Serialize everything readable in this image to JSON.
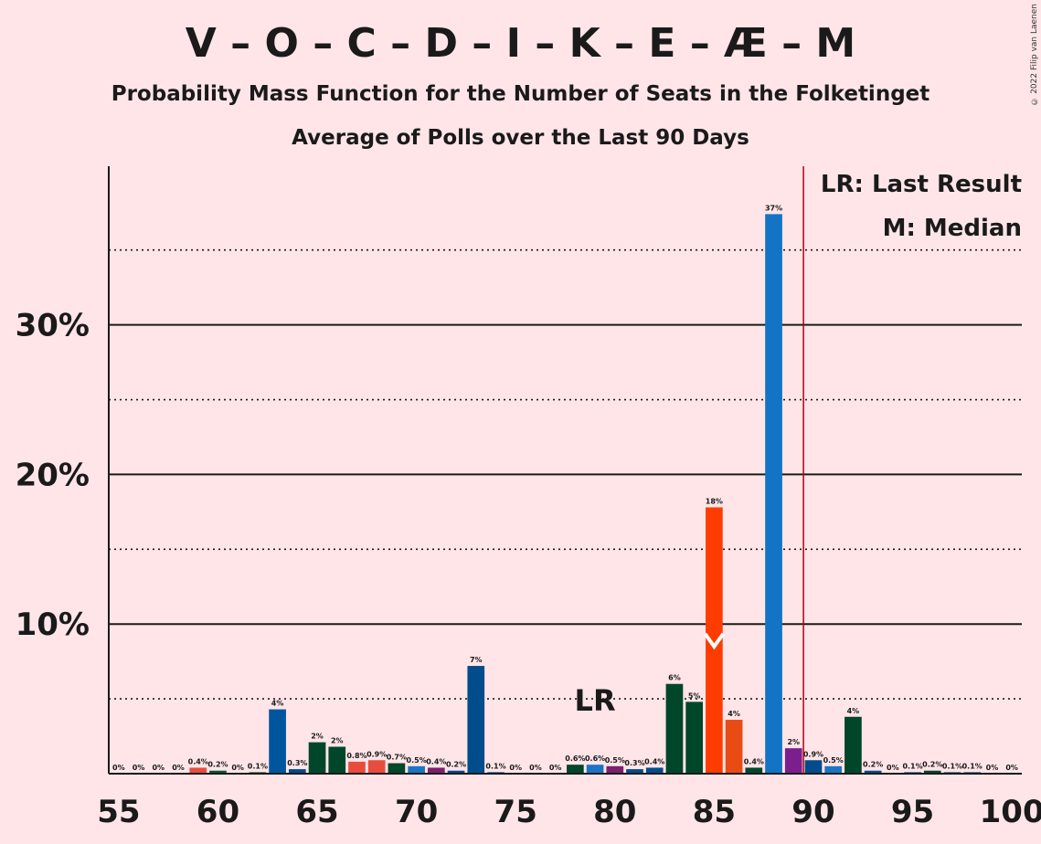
{
  "title": "V – O – C – D – I – K – E – Æ – M",
  "subtitle1": "Probability Mass Function for the Number of Seats in the Folketinget",
  "subtitle2": "Average of Polls over the Last 90 Days",
  "copyright": "© 2022 Filip van Laenen",
  "legend": {
    "lr": "LR: Last Result",
    "m": "M: Median"
  },
  "lr_marker": "LR",
  "chart_data": {
    "type": "bar",
    "x": [
      55,
      56,
      57,
      58,
      59,
      60,
      61,
      62,
      63,
      64,
      65,
      66,
      67,
      68,
      69,
      70,
      71,
      72,
      73,
      74,
      75,
      76,
      77,
      78,
      79,
      80,
      81,
      82,
      83,
      84,
      85,
      86,
      87,
      88,
      89,
      90,
      91,
      92,
      93,
      94,
      95,
      96,
      97,
      98,
      99,
      100
    ],
    "values": [
      0,
      0,
      0,
      0,
      0.4,
      0.2,
      0,
      0.1,
      4.3,
      0.3,
      2.1,
      1.8,
      0.8,
      0.9,
      0.7,
      0.5,
      0.4,
      0.2,
      7.2,
      0.1,
      0,
      0,
      0,
      0.6,
      0.6,
      0.5,
      0.3,
      0.4,
      6.0,
      4.8,
      17.8,
      3.6,
      0.4,
      37.4,
      1.7,
      0.9,
      0.5,
      3.8,
      0.2,
      0,
      0.1,
      0.2,
      0.1,
      0.1,
      0,
      0
    ],
    "labels": [
      "0%",
      "0%",
      "0%",
      "0%",
      "0.4%",
      "0.2%",
      "0%",
      "0.1%",
      "4%",
      "0.3%",
      "2%",
      "2%",
      "0.8%",
      "0.9%",
      "0.7%",
      "0.5%",
      "0.4%",
      "0.2%",
      "7%",
      "0.1%",
      "0%",
      "0%",
      "0%",
      "0.6%",
      "0.6%",
      "0.5%",
      "0.3%",
      "0.4%",
      "6%",
      "5%",
      "18%",
      "4%",
      "0.4%",
      "37%",
      "2%",
      "0.9%",
      "0.5%",
      "4%",
      "0.2%",
      "0%",
      "0.1%",
      "0.2%",
      "0.1%",
      "0.1%",
      "0%",
      "0%"
    ],
    "colors": [
      "#C8102E",
      "#1B5E20",
      "#004990",
      "#E84C3D",
      "#E84C3D",
      "#00583C",
      "#004990",
      "#1B5E20",
      "#00569E",
      "#004990",
      "#00462B",
      "#00462B",
      "#E84C3D",
      "#E84C3D",
      "#00462B",
      "#1C75C4",
      "#7C1F6E",
      "#004990",
      "#004C8C",
      "#004990",
      "#004990",
      "#004990",
      "#004990",
      "#00462B",
      "#1C75C4",
      "#7C1F6E",
      "#004C8C",
      "#004C8C",
      "#00462B",
      "#00462B",
      "#FF3C00",
      "#E84C14",
      "#00462B",
      "#1373C4",
      "#7C1F8E",
      "#004C8C",
      "#1C75C4",
      "#00462B",
      "#004C8C",
      "#004C8C",
      "#004C8C",
      "#00462B",
      "#004C8C",
      "#004C8C",
      "#004C8C",
      "#004C8C"
    ],
    "xticks": [
      55,
      60,
      65,
      70,
      75,
      80,
      85,
      90,
      95,
      100
    ],
    "xtick_labels": [
      "55",
      "60",
      "65",
      "70",
      "75",
      "80",
      "85",
      "90",
      "95",
      "100"
    ],
    "yticks": [
      10,
      20,
      30
    ],
    "ytick_labels": [
      "10%",
      "20%",
      "30%"
    ],
    "ylim": [
      0,
      40
    ],
    "xlim": [
      54.5,
      100.5
    ],
    "last_result": 79,
    "median": 85,
    "majority_line": 89.5,
    "grid": true
  }
}
